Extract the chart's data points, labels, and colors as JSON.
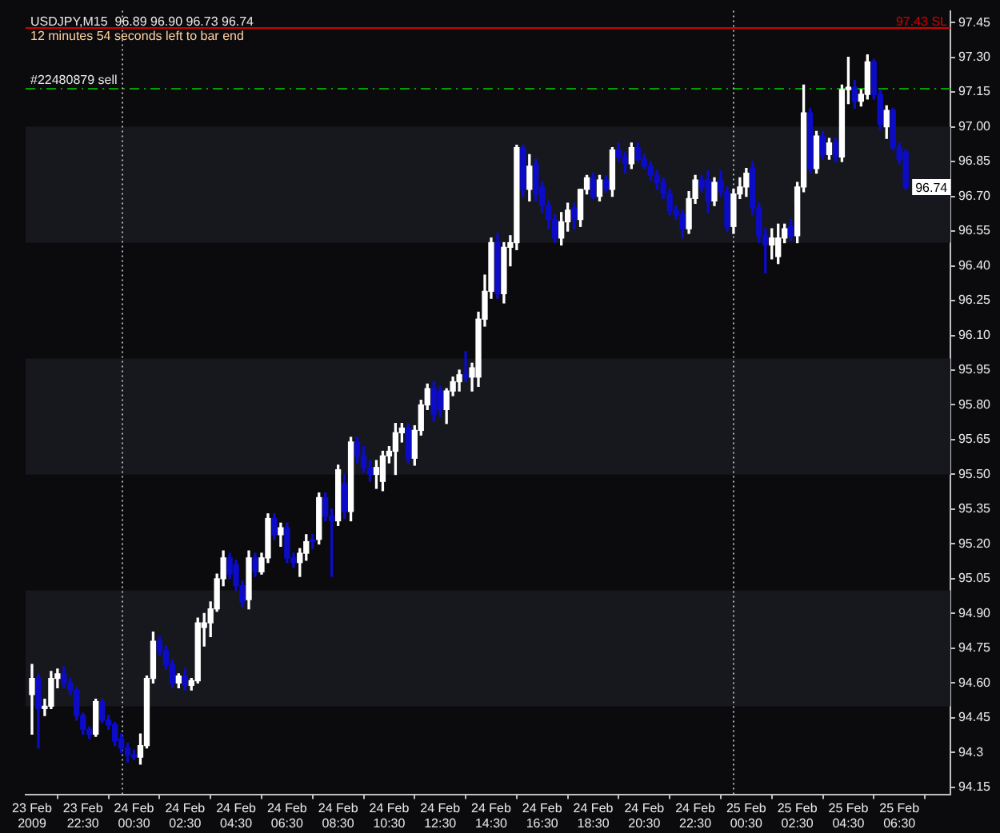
{
  "chart_data": {
    "type": "candlestick",
    "title": "USDJPY,M15  96.89 96.90 96.73 96.74",
    "subtitle": "12 minutes 54 seconds left to bar end",
    "x": [
      "2009-02-23T20:30",
      "2009-02-23T20:45",
      "2009-02-23T21:00",
      "2009-02-23T21:15",
      "2009-02-23T21:30",
      "2009-02-23T21:45",
      "2009-02-23T22:00",
      "2009-02-23T22:15",
      "2009-02-23T22:30",
      "2009-02-23T22:45",
      "2009-02-23T23:00",
      "2009-02-23T23:15",
      "2009-02-23T23:30",
      "2009-02-23T23:45",
      "2009-02-24T00:00",
      "2009-02-24T00:15",
      "2009-02-24T00:30",
      "2009-02-24T00:45",
      "2009-02-24T01:00",
      "2009-02-24T01:15",
      "2009-02-24T01:30",
      "2009-02-24T01:45",
      "2009-02-24T02:00",
      "2009-02-24T02:15",
      "2009-02-24T02:30",
      "2009-02-24T02:45",
      "2009-02-24T03:00",
      "2009-02-24T03:15",
      "2009-02-24T03:30",
      "2009-02-24T03:45",
      "2009-02-24T04:00",
      "2009-02-24T04:15",
      "2009-02-24T04:30",
      "2009-02-24T04:45",
      "2009-02-24T05:00",
      "2009-02-24T05:15",
      "2009-02-24T05:30",
      "2009-02-24T05:45",
      "2009-02-24T06:00",
      "2009-02-24T06:15",
      "2009-02-24T06:30",
      "2009-02-24T06:45",
      "2009-02-24T07:00",
      "2009-02-24T07:15",
      "2009-02-24T07:30",
      "2009-02-24T07:45",
      "2009-02-24T08:00",
      "2009-02-24T08:15",
      "2009-02-24T08:30",
      "2009-02-24T08:45",
      "2009-02-24T09:00",
      "2009-02-24T09:15",
      "2009-02-24T09:30",
      "2009-02-24T09:45",
      "2009-02-24T10:00",
      "2009-02-24T10:15",
      "2009-02-24T10:30",
      "2009-02-24T10:45",
      "2009-02-24T11:00",
      "2009-02-24T11:15",
      "2009-02-24T11:30",
      "2009-02-24T11:45",
      "2009-02-24T12:00",
      "2009-02-24T12:15",
      "2009-02-24T12:30",
      "2009-02-24T12:45",
      "2009-02-24T13:00",
      "2009-02-24T13:15",
      "2009-02-24T13:30",
      "2009-02-24T13:45",
      "2009-02-24T14:00",
      "2009-02-24T14:15",
      "2009-02-24T14:30",
      "2009-02-24T14:45",
      "2009-02-24T15:00",
      "2009-02-24T15:15",
      "2009-02-24T15:30",
      "2009-02-24T15:45",
      "2009-02-24T16:00",
      "2009-02-24T16:15",
      "2009-02-24T16:30",
      "2009-02-24T16:45",
      "2009-02-24T17:00",
      "2009-02-24T17:15",
      "2009-02-24T17:30",
      "2009-02-24T17:45",
      "2009-02-24T18:00",
      "2009-02-24T18:15",
      "2009-02-24T18:30",
      "2009-02-24T18:45",
      "2009-02-24T19:00",
      "2009-02-24T19:15",
      "2009-02-24T19:30",
      "2009-02-24T19:45",
      "2009-02-24T20:00",
      "2009-02-24T20:15",
      "2009-02-24T20:30",
      "2009-02-24T20:45",
      "2009-02-24T21:00",
      "2009-02-24T21:15",
      "2009-02-24T21:30",
      "2009-02-24T21:45",
      "2009-02-24T22:00",
      "2009-02-24T22:15",
      "2009-02-24T22:30",
      "2009-02-24T22:45",
      "2009-02-24T23:00",
      "2009-02-24T23:15",
      "2009-02-24T23:30",
      "2009-02-24T23:45",
      "2009-02-25T00:00",
      "2009-02-25T00:15",
      "2009-02-25T00:30",
      "2009-02-25T00:45",
      "2009-02-25T01:00",
      "2009-02-25T01:15",
      "2009-02-25T01:30",
      "2009-02-25T01:45",
      "2009-02-25T02:00",
      "2009-02-25T02:15",
      "2009-02-25T02:30",
      "2009-02-25T02:45",
      "2009-02-25T03:00",
      "2009-02-25T03:15",
      "2009-02-25T03:30",
      "2009-02-25T03:45",
      "2009-02-25T04:00",
      "2009-02-25T04:15",
      "2009-02-25T04:30",
      "2009-02-25T04:45",
      "2009-02-25T05:00",
      "2009-02-25T05:15",
      "2009-02-25T05:30",
      "2009-02-25T05:45",
      "2009-02-25T06:00",
      "2009-02-25T06:15",
      "2009-02-25T06:30",
      "2009-02-25T06:45"
    ],
    "ohlc": [
      [
        94.55,
        94.68,
        94.38,
        94.62
      ],
      [
        94.62,
        94.64,
        94.32,
        94.49
      ],
      [
        94.49,
        94.53,
        94.46,
        94.5
      ],
      [
        94.5,
        94.65,
        94.49,
        94.62
      ],
      [
        94.62,
        94.66,
        94.58,
        94.64
      ],
      [
        94.64,
        94.67,
        94.58,
        94.6
      ],
      [
        94.6,
        94.62,
        94.55,
        94.57
      ],
      [
        94.57,
        94.58,
        94.44,
        94.46
      ],
      [
        94.46,
        94.47,
        94.38,
        94.4
      ],
      [
        94.4,
        94.41,
        94.36,
        94.38
      ],
      [
        94.38,
        94.53,
        94.37,
        94.52
      ],
      [
        94.52,
        94.53,
        94.43,
        94.44
      ],
      [
        94.44,
        94.46,
        94.4,
        94.42
      ],
      [
        94.42,
        94.43,
        94.33,
        94.35
      ],
      [
        94.36,
        94.38,
        94.3,
        94.32
      ],
      [
        94.32,
        94.34,
        94.26,
        94.29
      ],
      [
        94.29,
        94.31,
        94.27,
        94.28
      ],
      [
        94.28,
        94.38,
        94.25,
        94.33
      ],
      [
        94.33,
        94.63,
        94.32,
        94.62
      ],
      [
        94.62,
        94.82,
        94.6,
        94.78
      ],
      [
        94.78,
        94.8,
        94.72,
        94.74
      ],
      [
        94.74,
        94.76,
        94.66,
        94.68
      ],
      [
        94.68,
        94.7,
        94.58,
        94.6
      ],
      [
        94.6,
        94.64,
        94.58,
        94.63
      ],
      [
        94.63,
        94.66,
        94.57,
        94.59
      ],
      [
        94.59,
        94.62,
        94.57,
        94.61
      ],
      [
        94.61,
        94.88,
        94.6,
        94.86
      ],
      [
        94.84,
        94.9,
        94.76,
        94.86
      ],
      [
        94.86,
        94.95,
        94.8,
        94.92
      ],
      [
        94.92,
        95.07,
        94.91,
        95.05
      ],
      [
        95.05,
        95.17,
        95.02,
        95.14
      ],
      [
        95.14,
        95.16,
        95.05,
        95.07
      ],
      [
        95.11,
        95.13,
        95.0,
        95.02
      ],
      [
        95.02,
        95.04,
        94.93,
        94.95
      ],
      [
        94.96,
        95.17,
        94.92,
        95.14
      ],
      [
        95.14,
        95.16,
        95.06,
        95.08
      ],
      [
        95.08,
        95.16,
        95.07,
        95.14
      ],
      [
        95.14,
        95.33,
        95.12,
        95.31
      ],
      [
        95.31,
        95.33,
        95.22,
        95.24
      ],
      [
        95.24,
        95.29,
        95.19,
        95.27
      ],
      [
        95.27,
        95.29,
        95.12,
        95.14
      ],
      [
        95.14,
        95.16,
        95.1,
        95.12
      ],
      [
        95.12,
        95.18,
        95.06,
        95.16
      ],
      [
        95.16,
        95.24,
        95.13,
        95.21
      ],
      [
        95.22,
        95.24,
        95.18,
        95.21
      ],
      [
        95.22,
        95.42,
        95.2,
        95.4
      ],
      [
        95.4,
        95.42,
        95.3,
        95.32
      ],
      [
        95.32,
        95.35,
        95.06,
        95.3
      ],
      [
        95.3,
        95.54,
        95.28,
        95.52
      ],
      [
        95.46,
        95.5,
        95.31,
        95.34
      ],
      [
        95.34,
        95.66,
        95.3,
        95.64
      ],
      [
        95.64,
        95.66,
        95.55,
        95.58
      ],
      [
        95.58,
        95.62,
        95.51,
        95.53
      ],
      [
        95.53,
        95.56,
        95.47,
        95.5
      ],
      [
        95.5,
        95.56,
        95.44,
        95.53
      ],
      [
        95.47,
        95.6,
        95.43,
        95.58
      ],
      [
        95.58,
        95.62,
        95.55,
        95.6
      ],
      [
        95.6,
        95.72,
        95.5,
        95.68
      ],
      [
        95.68,
        95.72,
        95.64,
        95.7
      ],
      [
        95.7,
        95.72,
        95.55,
        95.57
      ],
      [
        95.57,
        95.71,
        95.54,
        95.69
      ],
      [
        95.69,
        95.82,
        95.67,
        95.8
      ],
      [
        95.8,
        95.89,
        95.78,
        95.87
      ],
      [
        95.87,
        95.9,
        95.73,
        95.76
      ],
      [
        95.86,
        95.88,
        95.75,
        95.78
      ],
      [
        95.78,
        95.87,
        95.72,
        95.86
      ],
      [
        95.86,
        95.92,
        95.84,
        95.9
      ],
      [
        95.9,
        95.95,
        95.86,
        95.93
      ],
      [
        95.93,
        96.03,
        95.9,
        95.92
      ],
      [
        95.92,
        95.98,
        95.86,
        95.96
      ],
      [
        95.92,
        96.2,
        95.88,
        96.17
      ],
      [
        96.17,
        96.36,
        96.14,
        96.29
      ],
      [
        96.29,
        96.52,
        96.26,
        96.5
      ],
      [
        96.5,
        96.54,
        96.26,
        96.28
      ],
      [
        96.28,
        96.5,
        96.24,
        96.48
      ],
      [
        96.48,
        96.53,
        96.4,
        96.5
      ],
      [
        96.5,
        96.92,
        96.47,
        96.91
      ],
      [
        96.91,
        96.92,
        96.7,
        96.73
      ],
      [
        96.73,
        96.88,
        96.68,
        96.83
      ],
      [
        96.84,
        96.86,
        96.68,
        96.71
      ],
      [
        96.74,
        96.76,
        96.63,
        96.66
      ],
      [
        96.66,
        96.68,
        96.56,
        96.6
      ],
      [
        96.6,
        96.62,
        96.5,
        96.52
      ],
      [
        96.52,
        96.63,
        96.49,
        96.59
      ],
      [
        96.59,
        96.67,
        96.55,
        96.64
      ],
      [
        96.65,
        96.67,
        96.56,
        96.6
      ],
      [
        96.6,
        96.73,
        96.57,
        96.73
      ],
      [
        96.73,
        96.79,
        96.71,
        96.78
      ],
      [
        96.78,
        96.8,
        96.69,
        96.7
      ],
      [
        96.7,
        96.79,
        96.68,
        96.77
      ],
      [
        96.77,
        96.79,
        96.72,
        96.73
      ],
      [
        96.73,
        96.91,
        96.7,
        96.9
      ],
      [
        96.9,
        96.93,
        96.85,
        96.87
      ],
      [
        96.87,
        96.89,
        96.8,
        96.84
      ],
      [
        96.84,
        96.93,
        96.82,
        96.91
      ],
      [
        96.91,
        96.93,
        96.85,
        96.86
      ],
      [
        96.86,
        96.88,
        96.82,
        96.83
      ],
      [
        96.83,
        96.85,
        96.77,
        96.79
      ],
      [
        96.79,
        96.81,
        96.73,
        96.76
      ],
      [
        96.76,
        96.78,
        96.69,
        96.71
      ],
      [
        96.71,
        96.73,
        96.62,
        96.64
      ],
      [
        96.64,
        96.66,
        96.6,
        96.62
      ],
      [
        96.62,
        96.64,
        96.52,
        96.56
      ],
      [
        96.56,
        96.72,
        96.54,
        96.69
      ],
      [
        96.69,
        96.79,
        96.67,
        96.77
      ],
      [
        96.77,
        96.79,
        96.72,
        96.74
      ],
      [
        96.77,
        96.81,
        96.63,
        96.68
      ],
      [
        96.68,
        96.78,
        96.66,
        96.76
      ],
      [
        96.77,
        96.81,
        96.7,
        96.72
      ],
      [
        96.72,
        96.74,
        96.55,
        96.57
      ],
      [
        96.57,
        96.73,
        96.54,
        96.71
      ],
      [
        96.71,
        96.78,
        96.69,
        96.74
      ],
      [
        96.74,
        96.82,
        96.7,
        96.8
      ],
      [
        96.82,
        96.85,
        96.62,
        96.65
      ],
      [
        96.65,
        96.67,
        96.5,
        96.53
      ],
      [
        96.53,
        96.56,
        96.37,
        96.49
      ],
      [
        96.49,
        96.56,
        96.43,
        96.52
      ],
      [
        96.44,
        96.58,
        96.41,
        96.52
      ],
      [
        96.52,
        96.58,
        96.5,
        96.56
      ],
      [
        96.57,
        96.6,
        96.51,
        96.53
      ],
      [
        96.53,
        96.76,
        96.5,
        96.74
      ],
      [
        96.74,
        97.18,
        96.72,
        97.06
      ],
      [
        97.06,
        97.08,
        96.8,
        96.82
      ],
      [
        96.82,
        96.98,
        96.8,
        96.96
      ],
      [
        96.96,
        96.98,
        96.86,
        96.88
      ],
      [
        96.88,
        96.95,
        96.86,
        96.93
      ],
      [
        96.93,
        96.95,
        96.85,
        96.87
      ],
      [
        96.87,
        97.18,
        96.85,
        97.16
      ],
      [
        97.16,
        97.3,
        97.1,
        97.17
      ],
      [
        97.17,
        97.2,
        97.08,
        97.11
      ],
      [
        97.11,
        97.16,
        97.09,
        97.14
      ],
      [
        97.14,
        97.31,
        97.12,
        97.28
      ],
      [
        97.28,
        97.29,
        97.12,
        97.14
      ],
      [
        97.14,
        97.16,
        96.99,
        97.01
      ],
      [
        97.0,
        97.09,
        96.95,
        97.07
      ],
      [
        97.07,
        97.08,
        96.9,
        96.91
      ],
      [
        96.91,
        96.93,
        96.84,
        96.86
      ],
      [
        96.89,
        96.9,
        96.73,
        96.74
      ]
    ],
    "colors": [
      "#ffffff",
      "#0c0cc8",
      "#ffffff",
      "#ffffff",
      "#ffffff",
      "#0c0cc8",
      "#0c0cc8",
      "#0c0cc8",
      "#0c0cc8",
      "#0c0cc8",
      "#ffffff",
      "#0c0cc8",
      "#0c0cc8",
      "#0c0cc8",
      "#0c0cc8",
      "#0c0cc8",
      "#0c0cc8",
      "#ffffff",
      "#ffffff",
      "#ffffff",
      "#0c0cc8",
      "#0c0cc8",
      "#0c0cc8",
      "#ffffff",
      "#0c0cc8",
      "#ffffff",
      "#ffffff",
      "#ffffff",
      "#ffffff",
      "#ffffff",
      "#ffffff",
      "#0c0cc8",
      "#0c0cc8",
      "#0c0cc8",
      "#ffffff",
      "#0c0cc8",
      "#ffffff",
      "#ffffff",
      "#0c0cc8",
      "#ffffff",
      "#0c0cc8",
      "#0c0cc8",
      "#ffffff",
      "#ffffff",
      "#0c0cc8",
      "#ffffff",
      "#0c0cc8",
      "#0c0cc8",
      "#ffffff",
      "#0c0cc8",
      "#ffffff",
      "#0c0cc8",
      "#0c0cc8",
      "#0c0cc8",
      "#ffffff",
      "#ffffff",
      "#ffffff",
      "#ffffff",
      "#ffffff",
      "#0c0cc8",
      "#ffffff",
      "#ffffff",
      "#ffffff",
      "#0c0cc8",
      "#0c0cc8",
      "#ffffff",
      "#ffffff",
      "#ffffff",
      "#0c0cc8",
      "#ffffff",
      "#ffffff",
      "#ffffff",
      "#ffffff",
      "#0c0cc8",
      "#ffffff",
      "#ffffff",
      "#ffffff",
      "#0c0cc8",
      "#ffffff",
      "#0c0cc8",
      "#0c0cc8",
      "#0c0cc8",
      "#0c0cc8",
      "#ffffff",
      "#ffffff",
      "#0c0cc8",
      "#ffffff",
      "#ffffff",
      "#0c0cc8",
      "#ffffff",
      "#0c0cc8",
      "#ffffff",
      "#0c0cc8",
      "#0c0cc8",
      "#ffffff",
      "#0c0cc8",
      "#0c0cc8",
      "#0c0cc8",
      "#0c0cc8",
      "#0c0cc8",
      "#0c0cc8",
      "#0c0cc8",
      "#0c0cc8",
      "#ffffff",
      "#ffffff",
      "#0c0cc8",
      "#0c0cc8",
      "#ffffff",
      "#0c0cc8",
      "#0c0cc8",
      "#ffffff",
      "#ffffff",
      "#ffffff",
      "#0c0cc8",
      "#0c0cc8",
      "#0c0cc8",
      "#ffffff",
      "#ffffff",
      "#ffffff",
      "#0c0cc8",
      "#ffffff",
      "#ffffff",
      "#0c0cc8",
      "#ffffff",
      "#0c0cc8",
      "#ffffff",
      "#0c0cc8",
      "#ffffff",
      "#ffffff",
      "#0c0cc8",
      "#ffffff",
      "#ffffff",
      "#0c0cc8",
      "#0c0cc8",
      "#ffffff",
      "#0c0cc8",
      "#0c0cc8",
      "#0c0cc8"
    ],
    "xlim": [
      "2009-02-23T20:15",
      "2009-02-25T08:30"
    ],
    "xticks": [
      {
        "value": "2009-02-23T20:30",
        "label": "23 Feb 2009"
      },
      {
        "value": "2009-02-23T22:30",
        "label": "23 Feb 22:30"
      },
      {
        "value": "2009-02-24T00:30",
        "label": "24 Feb 00:30"
      },
      {
        "value": "2009-02-24T02:30",
        "label": "24 Feb 02:30"
      },
      {
        "value": "2009-02-24T04:30",
        "label": "24 Feb 04:30"
      },
      {
        "value": "2009-02-24T06:30",
        "label": "24 Feb 06:30"
      },
      {
        "value": "2009-02-24T08:30",
        "label": "24 Feb 08:30"
      },
      {
        "value": "2009-02-24T10:30",
        "label": "24 Feb 10:30"
      },
      {
        "value": "2009-02-24T12:30",
        "label": "24 Feb 12:30"
      },
      {
        "value": "2009-02-24T14:30",
        "label": "24 Feb 14:30"
      },
      {
        "value": "2009-02-24T16:30",
        "label": "24 Feb 16:30"
      },
      {
        "value": "2009-02-24T18:30",
        "label": "24 Feb 18:30"
      },
      {
        "value": "2009-02-24T20:30",
        "label": "24 Feb 20:30"
      },
      {
        "value": "2009-02-24T22:30",
        "label": "24 Feb 22:30"
      },
      {
        "value": "2009-02-25T00:30",
        "label": "25 Feb 00:30"
      },
      {
        "value": "2009-02-25T02:30",
        "label": "25 Feb 02:30"
      },
      {
        "value": "2009-02-25T04:30",
        "label": "25 Feb 04:30"
      },
      {
        "value": "2009-02-25T06:30",
        "label": "25 Feb 06:30"
      }
    ],
    "ylim": [
      94.12,
      97.5
    ],
    "yticks": [
      94.15,
      94.3,
      94.45,
      {
        "value": 94.6,
        "label": "94.60"
      },
      94.75,
      {
        "value": 94.9,
        "label": "94.90"
      },
      95.05,
      {
        "value": 95.2,
        "label": "95.20"
      },
      95.35,
      {
        "value": 95.5,
        "label": "95.50"
      },
      95.65,
      {
        "value": 95.8,
        "label": "95.80"
      },
      95.95,
      {
        "value": 96.1,
        "label": "96.10"
      },
      96.25,
      {
        "value": 96.4,
        "label": "96.40"
      },
      96.55,
      {
        "value": 96.7,
        "label": "96.70"
      },
      96.85,
      {
        "value": 97,
        "label": "97.00"
      },
      97.15,
      {
        "value": 97.3,
        "label": "97.30"
      },
      97.45
    ],
    "bands": [
      {
        "axis": "y",
        "from": 96.5,
        "to": 97.0,
        "color": "#17181d"
      },
      {
        "axis": "y",
        "from": 95.5,
        "to": 96.0,
        "color": "#17181d"
      },
      {
        "axis": "y",
        "from": 94.5,
        "to": 95.0,
        "color": "#17181d"
      }
    ],
    "ref_lines": [
      {
        "axis": "y",
        "value": 97.17,
        "label": "#22480879 sell",
        "color": "#00a000",
        "line_style": "dashed"
      },
      {
        "axis": "y",
        "value": 97.43,
        "label": "97.43 SL",
        "color": "#d00000",
        "line_style": "solid"
      },
      {
        "axis": "x",
        "value": "2009-02-24T00:00",
        "color": "#b0b0b0",
        "line_style": "dotted"
      },
      {
        "axis": "x",
        "value": "2009-02-25T00:00",
        "color": "#b0b0b0",
        "line_style": "dotted"
      }
    ],
    "annotations": [
      {
        "text": "96.74",
        "x": "2009-02-25T06:45",
        "y": 96.74
      }
    ],
    "legend": false
  }
}
